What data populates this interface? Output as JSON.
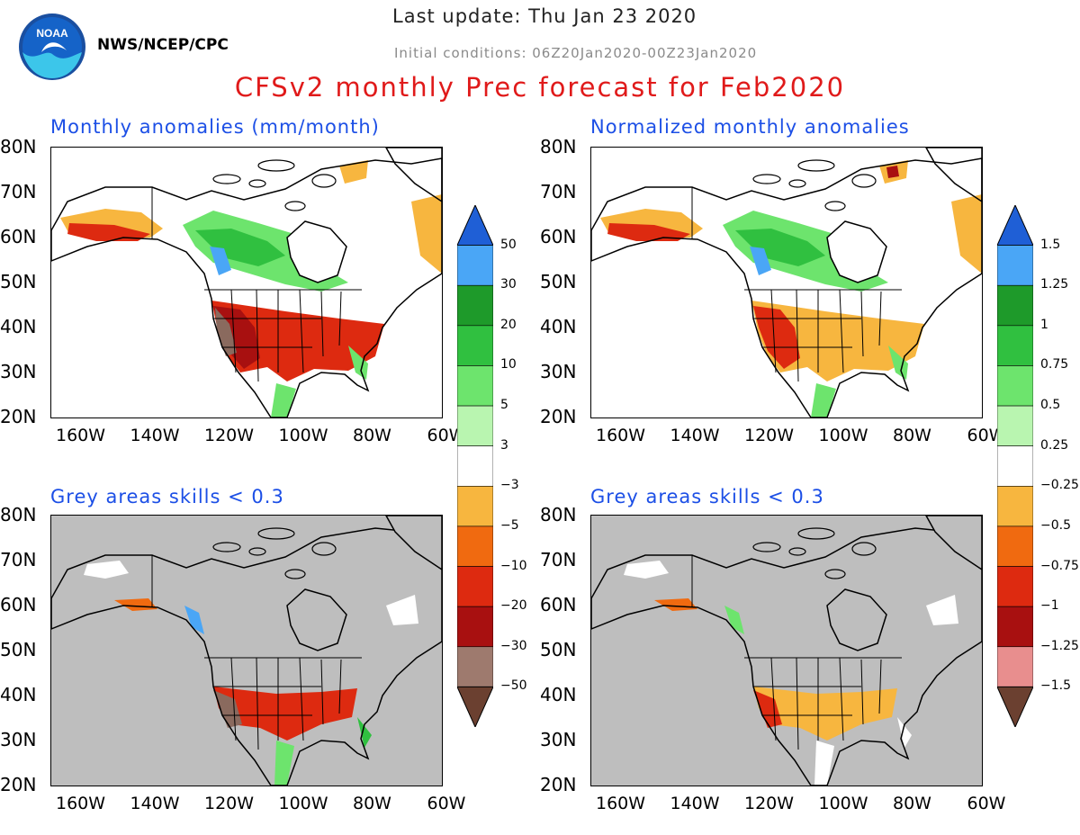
{
  "header": {
    "logo_text": "NOAA",
    "agency": "NWS/NCEP/CPC",
    "last_update": "Last update: Thu Jan 23 2020",
    "initial_conditions": "Initial conditions: 06Z20Jan2020-00Z23Jan2020",
    "title": "CFSv2 monthly Prec forecast for Feb2020"
  },
  "panels": [
    {
      "title": "Monthly anomalies (mm/month)",
      "skill_masked": false
    },
    {
      "title": "Normalized monthly anomalies",
      "skill_masked": false
    },
    {
      "title": "Grey areas skills < 0.3",
      "skill_masked": true
    },
    {
      "title": "Grey areas skills < 0.3",
      "skill_masked": true
    }
  ],
  "axes": {
    "lat_labels": [
      "80N",
      "70N",
      "60N",
      "50N",
      "40N",
      "30N",
      "20N"
    ],
    "lon_labels": [
      "160W",
      "140W",
      "120W",
      "100W",
      "80W",
      "60W"
    ]
  },
  "colorbars": [
    {
      "name": "anomaly-mm",
      "labels": [
        "50",
        "30",
        "20",
        "10",
        "5",
        "3",
        "−3",
        "−5",
        "−10",
        "−20",
        "−30",
        "−50"
      ]
    },
    {
      "name": "normalized",
      "labels": [
        "1.5",
        "1.25",
        "1",
        "0.75",
        "0.5",
        "0.25",
        "−0.25",
        "−0.5",
        "−0.75",
        "−1",
        "−1.25",
        "−1.5"
      ]
    }
  ],
  "colors": {
    "cb_a": [
      "#1f5fd6",
      "#4aa6f6",
      "#1e9a2a",
      "#30c040",
      "#6de46d",
      "#b9f5b0",
      "#ffffff",
      "#f7b63f",
      "#f06a10",
      "#dd2a10",
      "#a81010",
      "#9e7a6e",
      "#6b4030"
    ],
    "cb_n": [
      "#1f5fd6",
      "#4aa6f6",
      "#1e9a2a",
      "#30c040",
      "#6de46d",
      "#b9f5b0",
      "#ffffff",
      "#f7b63f",
      "#f06a10",
      "#dd2a10",
      "#a81010",
      "#e88e8e",
      "#6b4030"
    ],
    "land": "#ffffff",
    "grey_mask": "#bebebe",
    "green_light": "#6de46d",
    "green_mid": "#30c040",
    "blue": "#4aa6f6",
    "orange_light": "#f7b63f",
    "orange": "#f06a10",
    "red": "#dd2a10",
    "dark_red": "#a81010",
    "brown": "#8a6a5e"
  },
  "icons": {
    "logo": "noaa-logo",
    "arrow_up": "triangle-up",
    "arrow_down": "triangle-down"
  }
}
